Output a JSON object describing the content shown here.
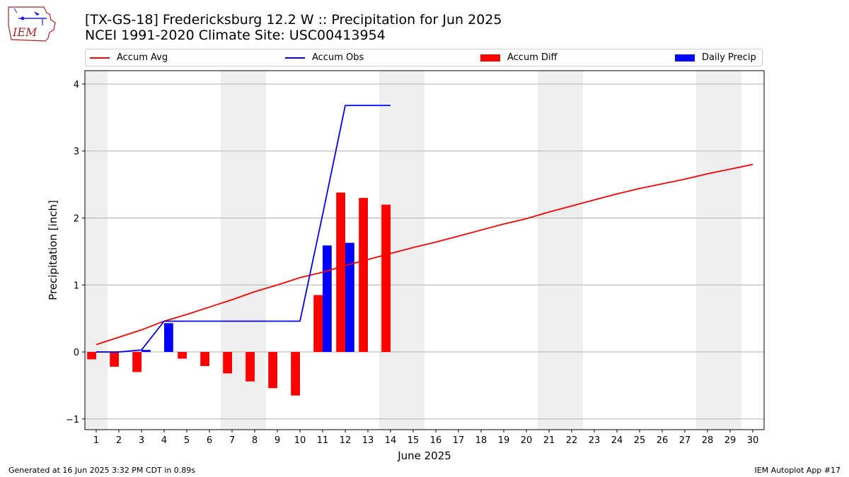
{
  "logo": {
    "text": "IEM"
  },
  "title": {
    "line1": "[TX-GS-18] Fredericksburg 12.2 W :: Precipitation for Jun 2025",
    "line2": "NCEI 1991-2020 Climate Site: USC00413954"
  },
  "legend": [
    {
      "label": "Accum Avg",
      "kind": "line",
      "color": "#ff0000"
    },
    {
      "label": "Accum Obs",
      "kind": "line",
      "color": "#0000ff"
    },
    {
      "label": "Accum Diff",
      "kind": "bar",
      "color": "#ff0000"
    },
    {
      "label": "Daily Precip",
      "kind": "bar",
      "color": "#0000ff"
    }
  ],
  "footer": {
    "left": "Generated at 16 Jun 2025 3:32 PM CDT in 0.89s",
    "right": "IEM Autoplot App #17"
  },
  "chart_data": {
    "type": "bar",
    "xlabel": "June 2025",
    "ylabel": "Precipitation [inch]",
    "xlim": [
      0.5,
      30.5
    ],
    "ylim": [
      -1.16,
      4.2
    ],
    "x_ticks": [
      1,
      2,
      3,
      4,
      5,
      6,
      7,
      8,
      9,
      10,
      11,
      12,
      13,
      14,
      15,
      16,
      17,
      18,
      19,
      20,
      21,
      22,
      23,
      24,
      25,
      26,
      27,
      28,
      29,
      30
    ],
    "y_ticks": [
      -1,
      0,
      1,
      2,
      3,
      4
    ],
    "grid": "y",
    "weekend_shading": [
      [
        0.5,
        1.5
      ],
      [
        6.5,
        8.5
      ],
      [
        13.5,
        15.5
      ],
      [
        20.5,
        22.5
      ],
      [
        27.5,
        29.5
      ]
    ],
    "series": [
      {
        "name": "Accum Avg",
        "kind": "line",
        "color": "#ff0000",
        "x": [
          1,
          2,
          3,
          4,
          5,
          6,
          7,
          8,
          9,
          10,
          11,
          12,
          13,
          14,
          15,
          16,
          17,
          18,
          19,
          20,
          21,
          22,
          23,
          24,
          25,
          26,
          27,
          28,
          29,
          30
        ],
        "values": [
          0.11,
          0.22,
          0.33,
          0.46,
          0.56,
          0.67,
          0.78,
          0.9,
          1.0,
          1.11,
          1.19,
          1.29,
          1.38,
          1.47,
          1.56,
          1.64,
          1.73,
          1.82,
          1.91,
          1.99,
          2.09,
          2.18,
          2.27,
          2.36,
          2.44,
          2.51,
          2.58,
          2.66,
          2.73,
          2.8
        ]
      },
      {
        "name": "Accum Obs",
        "kind": "line",
        "color": "#0000ff",
        "x": [
          1,
          2,
          3,
          4,
          5,
          6,
          7,
          8,
          9,
          10,
          11,
          12,
          13,
          14
        ],
        "values": [
          0.0,
          0.0,
          0.03,
          0.46,
          0.46,
          0.46,
          0.46,
          0.46,
          0.46,
          0.46,
          2.05,
          3.68,
          3.68,
          3.68
        ]
      },
      {
        "name": "Accum Diff",
        "kind": "bar",
        "color": "#ff0000",
        "x": [
          1,
          2,
          3,
          4,
          5,
          6,
          7,
          8,
          9,
          10,
          11,
          12,
          13,
          14
        ],
        "values": [
          -0.11,
          -0.22,
          -0.3,
          0.0,
          -0.1,
          -0.21,
          -0.32,
          -0.44,
          -0.54,
          -0.65,
          0.85,
          2.38,
          2.3,
          2.2
        ]
      },
      {
        "name": "Daily Precip",
        "kind": "bar",
        "color": "#0000ff",
        "x": [
          1,
          2,
          3,
          4,
          5,
          6,
          7,
          8,
          9,
          10,
          11,
          12,
          13,
          14
        ],
        "values": [
          0.0,
          0.0,
          0.03,
          0.43,
          0.0,
          0.0,
          0.0,
          0.0,
          0.0,
          0.0,
          1.59,
          1.63,
          0.0,
          0.0
        ]
      }
    ]
  }
}
